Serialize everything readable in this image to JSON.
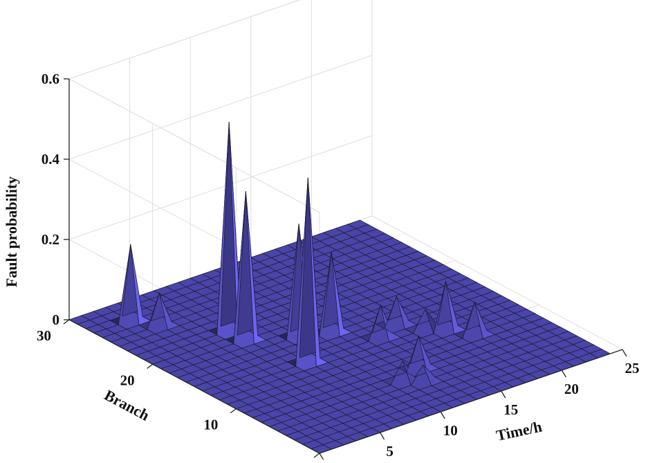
{
  "chart_data": {
    "type": "surface3d",
    "title": "",
    "xlabel": "Time/h",
    "ylabel": "Branch",
    "zlabel": "Fault probability",
    "xlim": [
      0,
      25
    ],
    "ylim": [
      0,
      30
    ],
    "zlim": [
      0,
      0.6
    ],
    "x_ticks": [
      "0",
      "5",
      "10",
      "15",
      "20",
      "25"
    ],
    "y_ticks": [
      "0",
      "10",
      "20",
      "30"
    ],
    "z_ticks": [
      "0",
      "0.2",
      "0.4",
      "0.6"
    ],
    "grid": true,
    "surface_color": "#4a45a8",
    "grid_resolution": {
      "x_step": 1,
      "y_step": 1,
      "x_max": 24,
      "y_max": 30
    },
    "baseline_value": 0,
    "peaks": [
      {
        "time": 3,
        "branch": 27,
        "value": 0.19
      },
      {
        "time": 4,
        "branch": 25,
        "value": 0.08
      },
      {
        "time": 7,
        "branch": 21,
        "value": 0.52
      },
      {
        "time": 7,
        "branch": 19,
        "value": 0.37
      },
      {
        "time": 8,
        "branch": 13,
        "value": 0.46
      },
      {
        "time": 10,
        "branch": 17,
        "value": 0.28
      },
      {
        "time": 12,
        "branch": 16,
        "value": 0.2
      },
      {
        "time": 14,
        "branch": 13,
        "value": 0.08
      },
      {
        "time": 13,
        "branch": 7,
        "value": 0.08
      },
      {
        "time": 16,
        "branch": 14,
        "value": 0.07
      },
      {
        "time": 17,
        "branch": 12,
        "value": 0.05
      },
      {
        "time": 18,
        "branch": 11,
        "value": 0.12
      },
      {
        "time": 19,
        "branch": 9,
        "value": 0.08
      },
      {
        "time": 11,
        "branch": 6,
        "value": 0.05
      },
      {
        "time": 12,
        "branch": 5,
        "value": 0.04
      }
    ]
  }
}
